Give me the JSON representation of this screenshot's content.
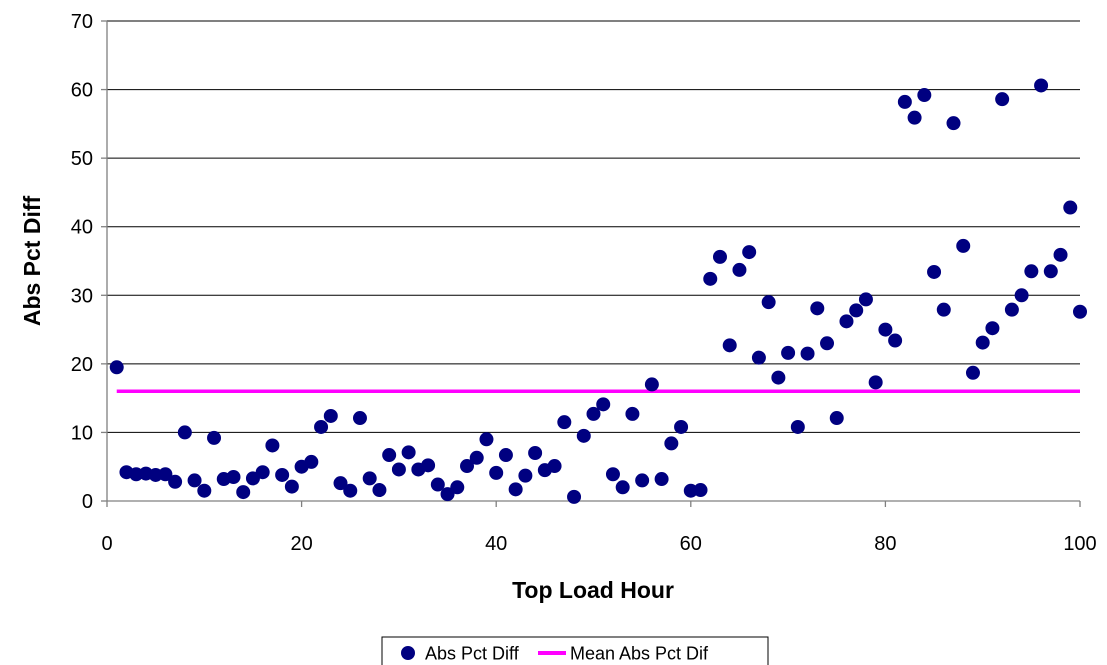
{
  "chart_data": {
    "type": "scatter",
    "xlabel": "Top Load Hour",
    "ylabel": "Abs Pct Diff",
    "xlim": [
      0,
      100
    ],
    "ylim": [
      0,
      70
    ],
    "xticks": [
      0,
      20,
      40,
      60,
      80,
      100
    ],
    "yticks": [
      0,
      10,
      20,
      30,
      40,
      50,
      60,
      70
    ],
    "grid": "horizontal",
    "legend_position": "bottom",
    "series": [
      {
        "name": "Abs Pct Diff",
        "type": "scatter",
        "color": "#000080",
        "x": [
          1,
          2,
          3,
          4,
          5,
          6,
          7,
          8,
          9,
          10,
          11,
          12,
          13,
          14,
          15,
          16,
          17,
          18,
          19,
          20,
          21,
          22,
          23,
          24,
          25,
          26,
          27,
          28,
          29,
          30,
          31,
          32,
          33,
          34,
          35,
          36,
          37,
          38,
          39,
          40,
          41,
          42,
          43,
          44,
          45,
          46,
          47,
          48,
          49,
          50,
          51,
          52,
          53,
          54,
          55,
          56,
          57,
          58,
          59,
          60,
          61,
          62,
          63,
          64,
          65,
          66,
          67,
          68,
          69,
          70,
          71,
          72,
          73,
          74,
          75,
          76,
          77,
          78,
          79,
          80,
          81,
          82,
          83,
          84,
          85,
          86,
          87,
          88,
          89,
          90,
          91,
          92,
          93,
          94,
          95,
          96,
          97,
          98,
          99,
          100
        ],
        "y": [
          19.5,
          4.2,
          3.9,
          4.0,
          3.8,
          3.9,
          2.8,
          10.0,
          3.0,
          1.5,
          9.2,
          3.2,
          3.5,
          1.3,
          3.3,
          4.2,
          8.1,
          3.8,
          2.1,
          5.0,
          5.7,
          10.8,
          12.4,
          2.6,
          1.5,
          12.1,
          3.3,
          1.6,
          6.7,
          4.6,
          7.1,
          4.6,
          5.2,
          2.4,
          1.0,
          2.0,
          5.1,
          6.3,
          9.0,
          4.1,
          6.7,
          1.7,
          3.7,
          7.0,
          4.5,
          5.1,
          11.5,
          0.6,
          9.5,
          12.7,
          14.1,
          3.9,
          2.0,
          12.7,
          3.0,
          17.0,
          3.2,
          8.4,
          10.8,
          1.5,
          1.6,
          32.4,
          35.6,
          22.7,
          33.7,
          36.3,
          20.9,
          29.0,
          18.0,
          21.6,
          10.8,
          21.5,
          28.1,
          23.0,
          12.1,
          26.2,
          27.8,
          29.4,
          17.3,
          25.0,
          23.4,
          58.2,
          55.9,
          59.2,
          33.4,
          27.9,
          55.1,
          37.2,
          18.7,
          23.1,
          25.2,
          58.6,
          27.9,
          30.0,
          33.5,
          60.6,
          33.5,
          35.9,
          42.8,
          27.6
        ]
      },
      {
        "name": "Mean Abs Pct Dif",
        "type": "line",
        "color": "#ff00ff",
        "x": [
          1,
          100
        ],
        "y": [
          16.0,
          16.0
        ]
      }
    ]
  }
}
